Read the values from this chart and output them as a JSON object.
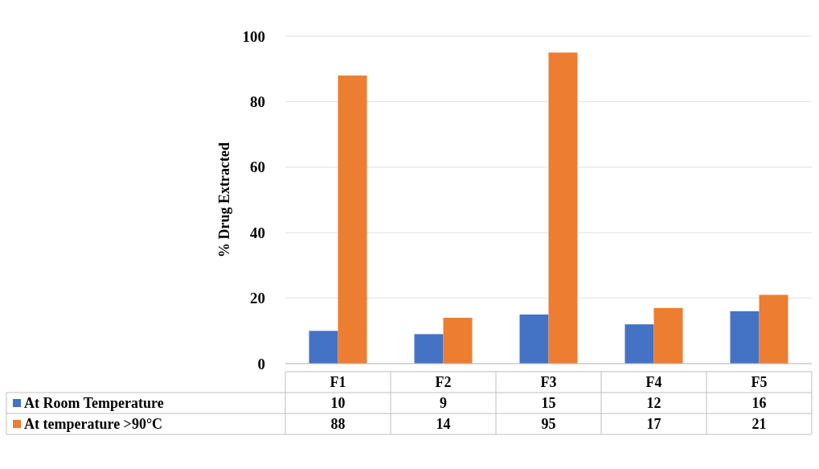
{
  "chart_data": {
    "type": "bar",
    "ylabel": "% Drug Extracted",
    "categories": [
      "F1",
      "F2",
      "F3",
      "F4",
      "F5"
    ],
    "series": [
      {
        "name": "At Room Temperature",
        "color": "#4472c4",
        "values": [
          10,
          9,
          15,
          12,
          16
        ]
      },
      {
        "name": "At temperature >90°C",
        "color": "#ed7d31",
        "values": [
          88,
          14,
          95,
          17,
          21
        ]
      }
    ],
    "ylim": [
      0,
      100
    ],
    "yticks": [
      0,
      20,
      40,
      60,
      80,
      100
    ],
    "grid": "y",
    "data_labels": true,
    "legend": "bottom"
  }
}
